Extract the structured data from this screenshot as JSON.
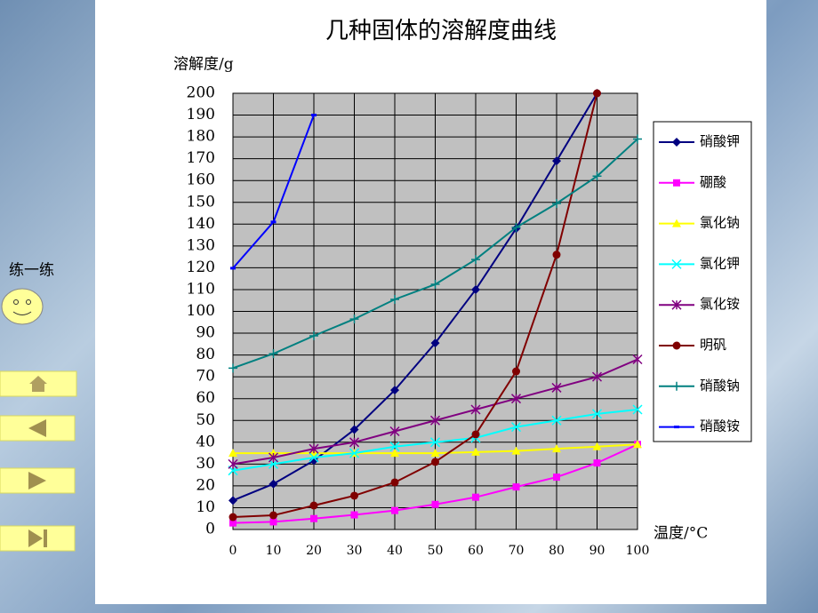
{
  "chart_data": {
    "type": "line",
    "title": "几种固体的溶解度曲线",
    "y_label": "溶解度/g",
    "x_label": "温度/°C",
    "x": [
      0,
      10,
      20,
      30,
      40,
      50,
      60,
      70,
      80,
      90,
      100
    ],
    "xlim": [
      0,
      100
    ],
    "xticks": [
      0,
      10,
      20,
      30,
      40,
      50,
      60,
      70,
      80,
      90,
      100
    ],
    "ylim": [
      0,
      200
    ],
    "yticks": [
      0,
      10,
      20,
      30,
      40,
      50,
      60,
      70,
      80,
      90,
      100,
      110,
      120,
      130,
      140,
      150,
      160,
      170,
      180,
      190,
      200
    ],
    "grid": true,
    "plot_background": "#c0c0c0",
    "legend": "right",
    "series": [
      {
        "name": "硝酸钾",
        "color": "#000080",
        "marker": "diamond",
        "values": [
          13.3,
          20.9,
          31.6,
          45.8,
          63.9,
          85.5,
          110,
          138,
          169,
          200,
          null
        ]
      },
      {
        "name": "硼酸",
        "color": "#ff00ff",
        "marker": "square",
        "values": [
          3,
          3.5,
          5,
          6.7,
          8.7,
          11.5,
          14.8,
          19.5,
          24,
          30.5,
          39
        ]
      },
      {
        "name": "氯化钠",
        "color": "#ffff00",
        "marker": "triangle",
        "values": [
          35,
          35,
          35,
          35,
          35,
          35,
          35.5,
          36,
          37,
          38,
          39
        ]
      },
      {
        "name": "氯化钾",
        "color": "#00ffff",
        "marker": "x",
        "values": [
          27,
          30,
          33,
          35,
          38,
          40,
          42,
          47,
          50,
          53,
          55
        ]
      },
      {
        "name": "氯化铵",
        "color": "#800080",
        "marker": "star",
        "values": [
          30,
          33,
          37,
          40,
          45,
          50,
          55,
          60,
          65,
          70,
          78
        ]
      },
      {
        "name": "明矾",
        "color": "#800000",
        "marker": "circle",
        "values": [
          5.7,
          6.5,
          11,
          15.5,
          21.6,
          31,
          43.6,
          72.5,
          126,
          200,
          null
        ]
      },
      {
        "name": "硝酸钠",
        "color": "#008080",
        "marker": "plus",
        "values": [
          74,
          80.6,
          88.8,
          96.5,
          105.5,
          112.4,
          123.8,
          138.5,
          149.5,
          162,
          179
        ]
      },
      {
        "name": "硝酸铵",
        "color": "#0000ff",
        "marker": "dash",
        "values": [
          119.8,
          141,
          190,
          null,
          null,
          null,
          null,
          null,
          null,
          null,
          null
        ]
      }
    ]
  },
  "sidebar": {
    "label": "练一练"
  }
}
